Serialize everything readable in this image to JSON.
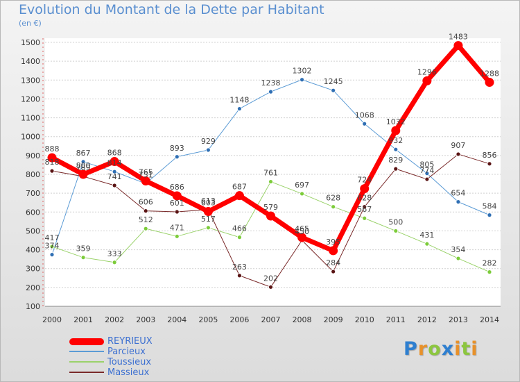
{
  "header": {
    "title": "Evolution du Montant de la Dette par Habitant",
    "unit": "(en €)"
  },
  "logo": {
    "letters": [
      {
        "ch": "P",
        "color": "#2e7fd0"
      },
      {
        "ch": "r",
        "color": "#e8912a"
      },
      {
        "ch": "o",
        "color": "#8cc63f"
      },
      {
        "ch": "x",
        "color": "#2e7fd0"
      },
      {
        "ch": "i",
        "color": "#e8912a"
      },
      {
        "ch": "t",
        "color": "#8cc63f"
      },
      {
        "ch": "i",
        "color": "#e8912a"
      }
    ]
  },
  "chart_data": {
    "type": "line",
    "title": "Evolution du Montant de la Dette par Habitant",
    "ylabel": "(en €)",
    "x": [
      "2000",
      "2001",
      "2002",
      "2003",
      "2004",
      "2005",
      "2006",
      "2007",
      "2008",
      "2009",
      "2010",
      "2011",
      "2012",
      "2013",
      "2014"
    ],
    "ylim": [
      100,
      1500
    ],
    "yticks": [
      100,
      200,
      300,
      400,
      500,
      600,
      700,
      800,
      900,
      1000,
      1100,
      1200,
      1300,
      1400,
      1500
    ],
    "grid": "horizontal-dashed",
    "legend_position": "bottom-left",
    "series": [
      {
        "name": "Parcieux",
        "color": "#5b9bd5",
        "width": 1,
        "marker": "#2f6fb4",
        "values": [
          374,
          867,
          814,
          751,
          893,
          929,
          1148,
          1238,
          1302,
          1245,
          1068,
          932,
          805,
          654,
          584
        ]
      },
      {
        "name": "Toussieux",
        "color": "#9ad26a",
        "width": 1,
        "marker": "#7ccc3a",
        "values": [
          417,
          359,
          333,
          512,
          471,
          517,
          466,
          761,
          697,
          628,
          567,
          500,
          431,
          354,
          282
        ]
      },
      {
        "name": "Massieux",
        "color": "#7a2a2a",
        "width": 1,
        "marker": "#5a1414",
        "values": [
          818,
          789,
          741,
          606,
          601,
          613,
          263,
          202,
          450,
          284,
          628,
          829,
          774,
          907,
          856
        ]
      },
      {
        "name": "REYRIEUX",
        "color": "#ff0000",
        "width": 7,
        "marker": "#ff0000",
        "values": [
          888,
          800,
          868,
          765,
          686,
          603,
          687,
          579,
          465,
          395,
          724,
          1032,
          1296,
          1483,
          1288
        ]
      }
    ],
    "data_labels": {
      "Parcieux": [
        "374",
        "867",
        "814",
        "751",
        "893",
        "929",
        "1148",
        "1238",
        "1302",
        "1245",
        "1068",
        "932",
        "805",
        "654",
        "584"
      ],
      "Toussieux": [
        "417",
        "359",
        "333",
        "512",
        "471",
        "517",
        "466",
        "761",
        "697",
        "628",
        "567",
        "500",
        "431",
        "354",
        "282"
      ],
      "Massieux": [
        "818",
        "789",
        "741",
        "606",
        "601",
        "613",
        "263",
        "202",
        "450",
        "284",
        "628",
        "829",
        "774",
        "907",
        "856"
      ],
      "REYRIEUX": [
        "888",
        "800",
        "868",
        "765",
        "686",
        "603",
        "687",
        "579",
        "465",
        "395",
        "724",
        "1032",
        "1296",
        "1483",
        "1288"
      ]
    }
  },
  "legend": {
    "items": [
      {
        "label": "REYRIEUX",
        "color": "#ff0000",
        "thick": true
      },
      {
        "label": "Parcieux",
        "color": "#5b9bd5",
        "thick": false
      },
      {
        "label": "Toussieux",
        "color": "#9ad26a",
        "thick": false
      },
      {
        "label": "Massieux",
        "color": "#7a2a2a",
        "thick": false
      }
    ]
  }
}
